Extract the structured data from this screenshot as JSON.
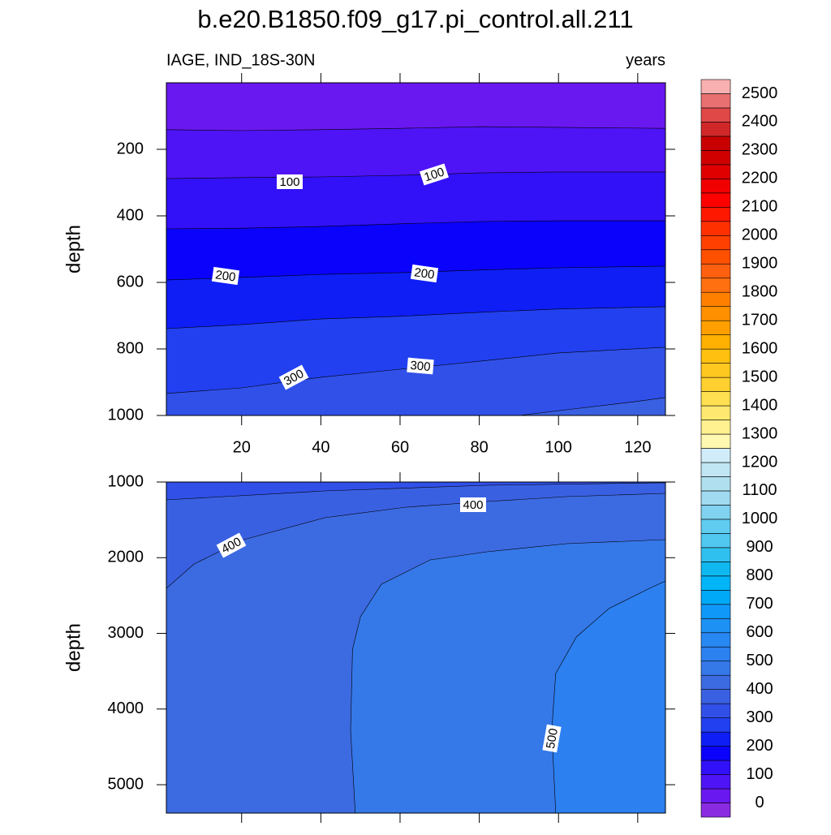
{
  "chart_data": [
    {
      "type": "contour",
      "title": "b.e20.B1850.f09_g17.pi_control.all.211",
      "left_title": "IAGE, IND_18S-30N",
      "right_title": "years",
      "y_label": "depth",
      "xlim": [
        1,
        127
      ],
      "xticks": [
        20,
        40,
        60,
        80,
        100,
        120
      ],
      "ylim": [
        0,
        1000
      ],
      "yticks": [
        200,
        400,
        600,
        800,
        1000
      ],
      "y_reversed": true,
      "contours": [
        {
          "level": 50,
          "x": [
            1,
            20,
            40,
            60,
            80,
            100,
            127
          ],
          "y": [
            141,
            144,
            141,
            137,
            132,
            134,
            137
          ]
        },
        {
          "level": 100,
          "x": [
            1,
            20,
            40,
            60,
            80,
            100,
            127
          ],
          "y": [
            288,
            285,
            283,
            278,
            271,
            268,
            268
          ]
        },
        {
          "level": 150,
          "x": [
            1,
            20,
            40,
            60,
            80,
            100,
            127
          ],
          "y": [
            439,
            437,
            432,
            424,
            417,
            415,
            415
          ]
        },
        {
          "level": 200,
          "x": [
            1,
            20,
            40,
            60,
            80,
            100,
            127
          ],
          "y": [
            593,
            585,
            576,
            571,
            563,
            556,
            551
          ]
        },
        {
          "level": 250,
          "x": [
            1,
            20,
            40,
            60,
            80,
            100,
            127
          ],
          "y": [
            739,
            727,
            710,
            702,
            690,
            680,
            673
          ]
        },
        {
          "level": 300,
          "x": [
            1,
            20,
            40,
            60,
            80,
            100,
            127
          ],
          "y": [
            934,
            917,
            885,
            861,
            837,
            812,
            795
          ]
        },
        {
          "level": 350,
          "x": [
            90,
            102,
            119,
            127
          ],
          "y": [
            1000,
            983,
            959,
            946
          ]
        }
      ]
    },
    {
      "type": "contour",
      "y_label": "depth",
      "xlim": [
        1,
        127
      ],
      "xticks": [
        20,
        40,
        60,
        80,
        100,
        120
      ],
      "xtick_labels": false,
      "ylim": [
        1000,
        5375
      ],
      "yticks": [
        1000,
        2000,
        3000,
        4000,
        5000
      ],
      "y_reversed": true,
      "contours": [
        {
          "level": 350,
          "x": [
            1,
            41,
            82,
            127
          ],
          "y": [
            1236,
            1118,
            1043,
            1010
          ]
        },
        {
          "level": 400,
          "x": [
            1,
            8,
            20.5,
            41,
            61.5,
            82,
            102,
            127
          ],
          "y": [
            2405,
            2083,
            1761,
            1472,
            1332,
            1257,
            1193,
            1150
          ]
        },
        {
          "level": 450,
          "x": [
            48.7,
            47.5,
            48,
            50,
            55.3,
            67.6,
            82,
            102,
            127
          ],
          "y": [
            5375,
            4281,
            3209,
            2780,
            2351,
            2029,
            1922,
            1815,
            1761
          ]
        },
        {
          "level": 500,
          "x": [
            99.3,
            98.3,
            99.3,
            104.5,
            112.7,
            123,
            127
          ],
          "y": [
            5375,
            4281,
            3531,
            3048,
            2673,
            2405,
            2308
          ]
        }
      ]
    },
    {
      "type": "colorbar",
      "ticks": [
        0,
        100,
        200,
        300,
        400,
        500,
        600,
        700,
        800,
        900,
        1000,
        1100,
        1200,
        1300,
        1400,
        1500,
        1600,
        1700,
        1800,
        1900,
        2000,
        2100,
        2200,
        2300,
        2400,
        2500
      ],
      "level_step": 50,
      "colors": [
        "#8a2be2",
        "#6a18f0",
        "#4e14f5",
        "#3210f8",
        "#0a02fa",
        "#0e1ef5",
        "#2240f0",
        "#3050e8",
        "#3a60e2",
        "#3c6ae0",
        "#3578e8",
        "#2c80f0",
        "#2888f2",
        "#1e92f4",
        "#1098f8",
        "#00a8f8",
        "#00b4f8",
        "#10b8f0",
        "#30c0f0",
        "#50c8f0",
        "#60ccf0",
        "#80d2f0",
        "#a0daf0",
        "#b0e0f0",
        "#c0e6f4",
        "#d0ecf8",
        "#fff8b0",
        "#fff090",
        "#ffe870",
        "#ffe050",
        "#ffd030",
        "#ffc820",
        "#ffc010",
        "#ffb000",
        "#ffa000",
        "#ff9000",
        "#ff8000",
        "#ff7010",
        "#ff6010",
        "#ff5000",
        "#ff4000",
        "#ff3000",
        "#ff1800",
        "#ff0000",
        "#f00000",
        "#e00000",
        "#d00000",
        "#c80000",
        "#d02828",
        "#e04848",
        "#e87070",
        "#f8b0b0"
      ]
    }
  ]
}
